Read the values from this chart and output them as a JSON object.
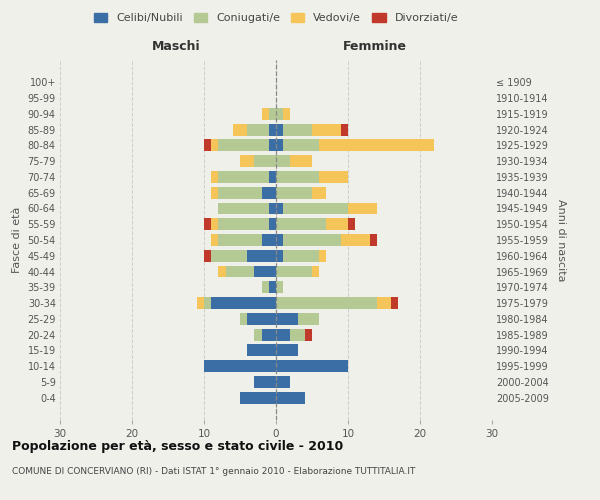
{
  "age_groups": [
    "100+",
    "95-99",
    "90-94",
    "85-89",
    "80-84",
    "75-79",
    "70-74",
    "65-69",
    "60-64",
    "55-59",
    "50-54",
    "45-49",
    "40-44",
    "35-39",
    "30-34",
    "25-29",
    "20-24",
    "15-19",
    "10-14",
    "5-9",
    "0-4"
  ],
  "birth_years": [
    "≤ 1909",
    "1910-1914",
    "1915-1919",
    "1920-1924",
    "1925-1929",
    "1930-1934",
    "1935-1939",
    "1940-1944",
    "1945-1949",
    "1950-1954",
    "1955-1959",
    "1960-1964",
    "1965-1969",
    "1970-1974",
    "1975-1979",
    "1980-1984",
    "1985-1989",
    "1990-1994",
    "1995-1999",
    "2000-2004",
    "2005-2009"
  ],
  "male": {
    "celibi": [
      0,
      0,
      0,
      1,
      1,
      0,
      1,
      2,
      1,
      1,
      2,
      4,
      3,
      1,
      9,
      4,
      2,
      4,
      10,
      3,
      5
    ],
    "coniugati": [
      0,
      0,
      1,
      3,
      7,
      3,
      7,
      6,
      7,
      7,
      6,
      5,
      4,
      1,
      1,
      1,
      1,
      0,
      0,
      0,
      0
    ],
    "vedovi": [
      0,
      0,
      1,
      2,
      1,
      2,
      1,
      1,
      0,
      1,
      1,
      0,
      1,
      0,
      1,
      0,
      0,
      0,
      0,
      0,
      0
    ],
    "divorziati": [
      0,
      0,
      0,
      0,
      1,
      0,
      0,
      0,
      0,
      1,
      0,
      1,
      0,
      0,
      0,
      0,
      0,
      0,
      0,
      0,
      0
    ]
  },
  "female": {
    "nubili": [
      0,
      0,
      0,
      1,
      1,
      0,
      0,
      0,
      1,
      0,
      1,
      1,
      0,
      0,
      0,
      3,
      2,
      3,
      10,
      2,
      4
    ],
    "coniugate": [
      0,
      0,
      1,
      4,
      5,
      2,
      6,
      5,
      9,
      7,
      8,
      5,
      5,
      1,
      14,
      3,
      2,
      0,
      0,
      0,
      0
    ],
    "vedove": [
      0,
      0,
      1,
      4,
      16,
      3,
      4,
      2,
      4,
      3,
      4,
      1,
      1,
      0,
      2,
      0,
      0,
      0,
      0,
      0,
      0
    ],
    "divorziate": [
      0,
      0,
      0,
      1,
      0,
      0,
      0,
      0,
      0,
      1,
      1,
      0,
      0,
      0,
      1,
      0,
      1,
      0,
      0,
      0,
      0
    ]
  },
  "colors": {
    "celibi": "#3a6ea5",
    "coniugati": "#b5c994",
    "vedovi": "#f5c55a",
    "divorziati": "#c0392b"
  },
  "xlim": 30,
  "title": "Popolazione per età, sesso e stato civile - 2010",
  "subtitle": "COMUNE DI CONCERVIANO (RI) - Dati ISTAT 1° gennaio 2010 - Elaborazione TUTTITALIA.IT",
  "ylabel_left": "Fasce di età",
  "ylabel_right": "Anni di nascita",
  "xlabel_left": "Maschi",
  "xlabel_right": "Femmine",
  "bg_color": "#f0f0eb",
  "grid_color": "#cccccc"
}
